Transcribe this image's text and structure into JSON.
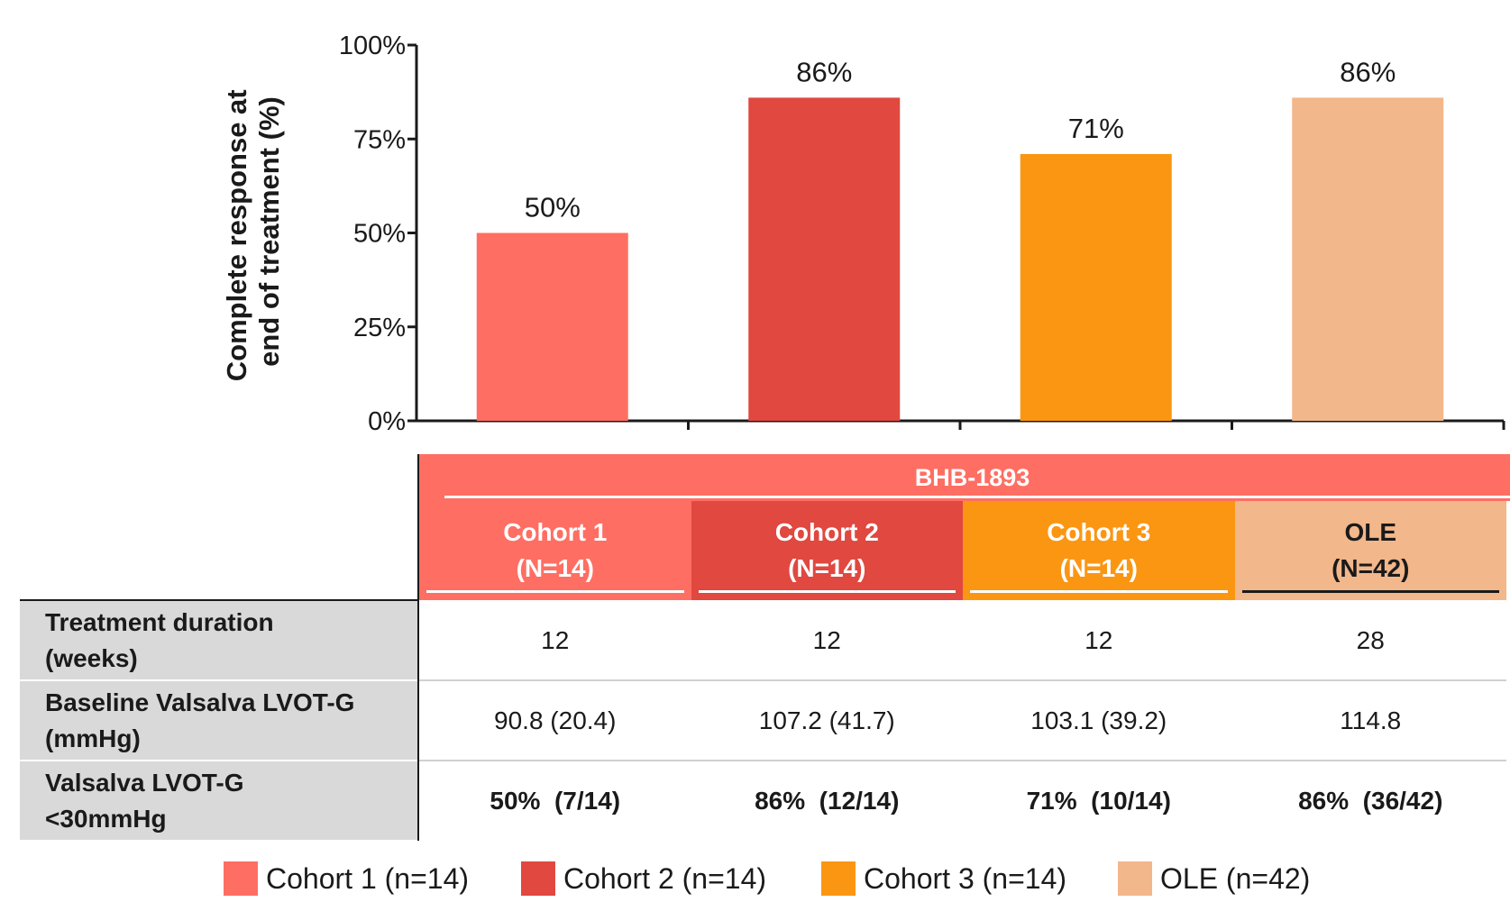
{
  "chart_data": {
    "type": "bar",
    "categories": [
      "Cohort 1 (n=14)",
      "Cohort 2 (n=14)",
      "Cohort 3 (n=14)",
      "OLE (n=42)"
    ],
    "values": [
      50,
      86,
      71,
      86
    ],
    "data_labels": [
      "50%",
      "86%",
      "71%",
      "86%"
    ],
    "colors": [
      "#ff6e63",
      "#e04840",
      "#fb9613",
      "#f2b78a"
    ],
    "ylabel_lines": [
      "Complete response at",
      "end of treatment (%)"
    ],
    "yticks": [
      {
        "value": 0,
        "label": "0%"
      },
      {
        "value": 25,
        "label": "25%"
      },
      {
        "value": 50,
        "label": "50%"
      },
      {
        "value": 75,
        "label": "75%"
      },
      {
        "value": 100,
        "label": "100%"
      }
    ],
    "ylim": [
      0,
      100
    ],
    "grid": false,
    "legend_position": "bottom"
  },
  "table": {
    "banner": "BHB-1893",
    "banner_color": "#ff6e63",
    "columns": [
      {
        "line1": "Cohort 1",
        "line2": "(N=14)",
        "bg": "#ff6e63",
        "fg": "#ffffff",
        "underline": "#ffffff"
      },
      {
        "line1": "Cohort 2",
        "line2": "(N=14)",
        "bg": "#e04840",
        "fg": "#ffffff",
        "underline": "#ffffff"
      },
      {
        "line1": "Cohort 3",
        "line2": "(N=14)",
        "bg": "#fb9613",
        "fg": "#ffffff",
        "underline": "#ffffff"
      },
      {
        "line1": "OLE",
        "line2": "(N=42)",
        "bg": "#f2b78a",
        "fg": "#1a1a1a",
        "underline": "#1a1a1a"
      }
    ],
    "rows": [
      {
        "label_line1": "Treatment duration",
        "label_line2": "(weeks)",
        "bold": false,
        "cells": [
          "12",
          "12",
          "12",
          "28"
        ]
      },
      {
        "label_line1": "Baseline Valsalva LVOT-G",
        "label_line2": "(mmHg)",
        "bold": false,
        "cells": [
          "90.8 (20.4)",
          "107.2 (41.7)",
          "103.1 (39.2)",
          "114.8"
        ]
      },
      {
        "label_line1": "Valsalva LVOT-G",
        "label_line2": "<30mmHg",
        "bold": true,
        "cells": [
          "50%  (7/14)",
          "86%  (12/14)",
          "71%  (10/14)",
          "86%  (36/42)"
        ]
      }
    ]
  },
  "legend": [
    {
      "label": "Cohort 1 (n=14)",
      "color": "#ff6e63"
    },
    {
      "label": "Cohort 2 (n=14)",
      "color": "#e04840"
    },
    {
      "label": "Cohort 3 (n=14)",
      "color": "#fb9613"
    },
    {
      "label": "OLE (n=42)",
      "color": "#f2b78a"
    }
  ]
}
